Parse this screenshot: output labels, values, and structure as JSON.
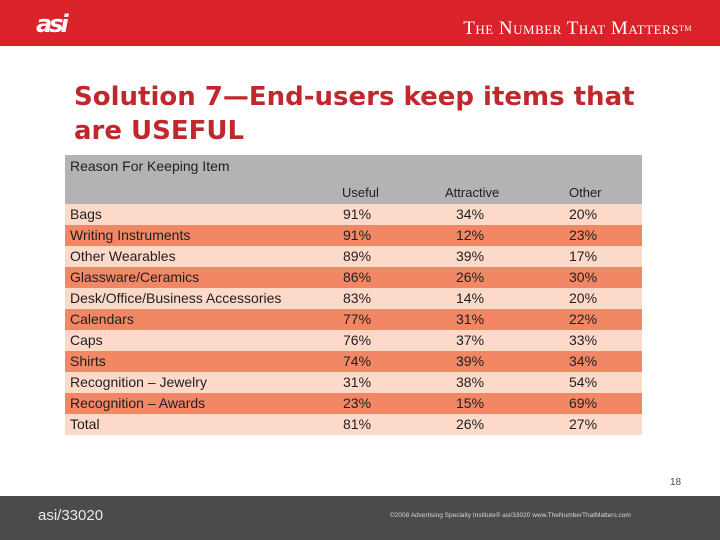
{
  "header": {
    "logo": "asi",
    "tagline": "The Number That Matters",
    "tagline_mark": "TM",
    "colors": {
      "header_bg": "#d9222a",
      "title": "#c0282d"
    }
  },
  "title": "Solution 7—End-users keep items that are USEFUL",
  "table": {
    "title": "Reason For Keeping Item",
    "columns": [
      "Useful",
      "Attractive",
      "Other"
    ],
    "rows": [
      {
        "label": "Bags",
        "useful": "91%",
        "attractive": "34%",
        "other": "20%"
      },
      {
        "label": "Writing Instruments",
        "useful": "91%",
        "attractive": "12%",
        "other": "23%"
      },
      {
        "label": "Other Wearables",
        "useful": "89%",
        "attractive": "39%",
        "other": "17%"
      },
      {
        "label": "Glassware/Ceramics",
        "useful": "86%",
        "attractive": "26%",
        "other": "30%"
      },
      {
        "label": "Desk/Office/Business Accessories",
        "useful": "83%",
        "attractive": "14%",
        "other": "20%"
      },
      {
        "label": "Calendars",
        "useful": "77%",
        "attractive": "31%",
        "other": "22%"
      },
      {
        "label": "Caps",
        "useful": "76%",
        "attractive": "37%",
        "other": "33%"
      },
      {
        "label": "Shirts",
        "useful": "74%",
        "attractive": "39%",
        "other": "34%"
      },
      {
        "label": "Recognition – Jewelry",
        "useful": "31%",
        "attractive": "38%",
        "other": "54%"
      },
      {
        "label": "Recognition – Awards",
        "useful": "23%",
        "attractive": "15%",
        "other": "69%"
      },
      {
        "label": "Total",
        "useful": "81%",
        "attractive": "26%",
        "other": "27%"
      }
    ],
    "colors": {
      "header": "#b3b3b3",
      "row_light": "#fcd9c9",
      "row_dark": "#f28765"
    }
  },
  "page_number": "18",
  "footer": {
    "left": "asi/33020",
    "right": "©2008 Advertising Specialty Institute® asi/33020 www.TheNumberThatMatters.com"
  }
}
